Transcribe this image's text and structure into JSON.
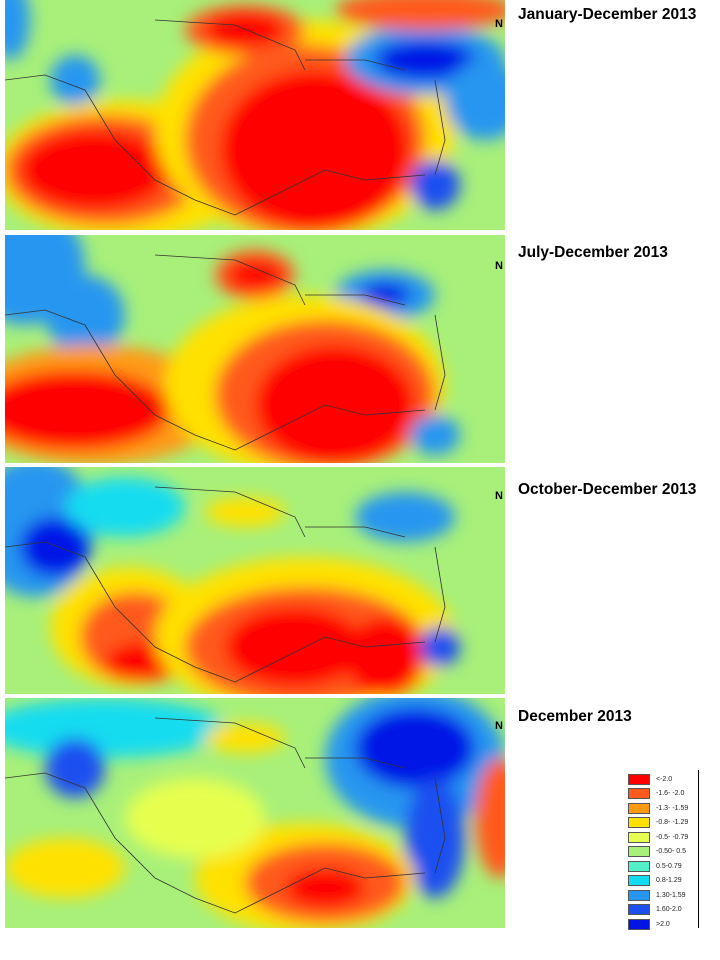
{
  "panels": [
    {
      "title": "January-December 2013"
    },
    {
      "title": "July-December 2013"
    },
    {
      "title": "October-December 2013"
    },
    {
      "title": "December 2013"
    }
  ],
  "north_label": "N",
  "legend": [
    {
      "label": "<-2.0",
      "color": "#ff0000"
    },
    {
      "label": "-1.6- -2.0",
      "color": "#ff5a1e"
    },
    {
      "label": "-1.3- -1.59",
      "color": "#ff9a14"
    },
    {
      "label": "-0.8- -1.29",
      "color": "#ffe100"
    },
    {
      "label": "-0.5- -0.79",
      "color": "#e6ff50"
    },
    {
      "label": "-0.50- 0.5",
      "color": "#a8f07a"
    },
    {
      "label": "0.5-0.79",
      "color": "#50f0c8"
    },
    {
      "label": "0.8-1.29",
      "color": "#14dcf0"
    },
    {
      "label": "1.30-1.59",
      "color": "#2896f0"
    },
    {
      "label": "1.60-2.0",
      "color": "#1e50f0"
    },
    {
      "label": ">2.0",
      "color": "#0014e6"
    }
  ]
}
